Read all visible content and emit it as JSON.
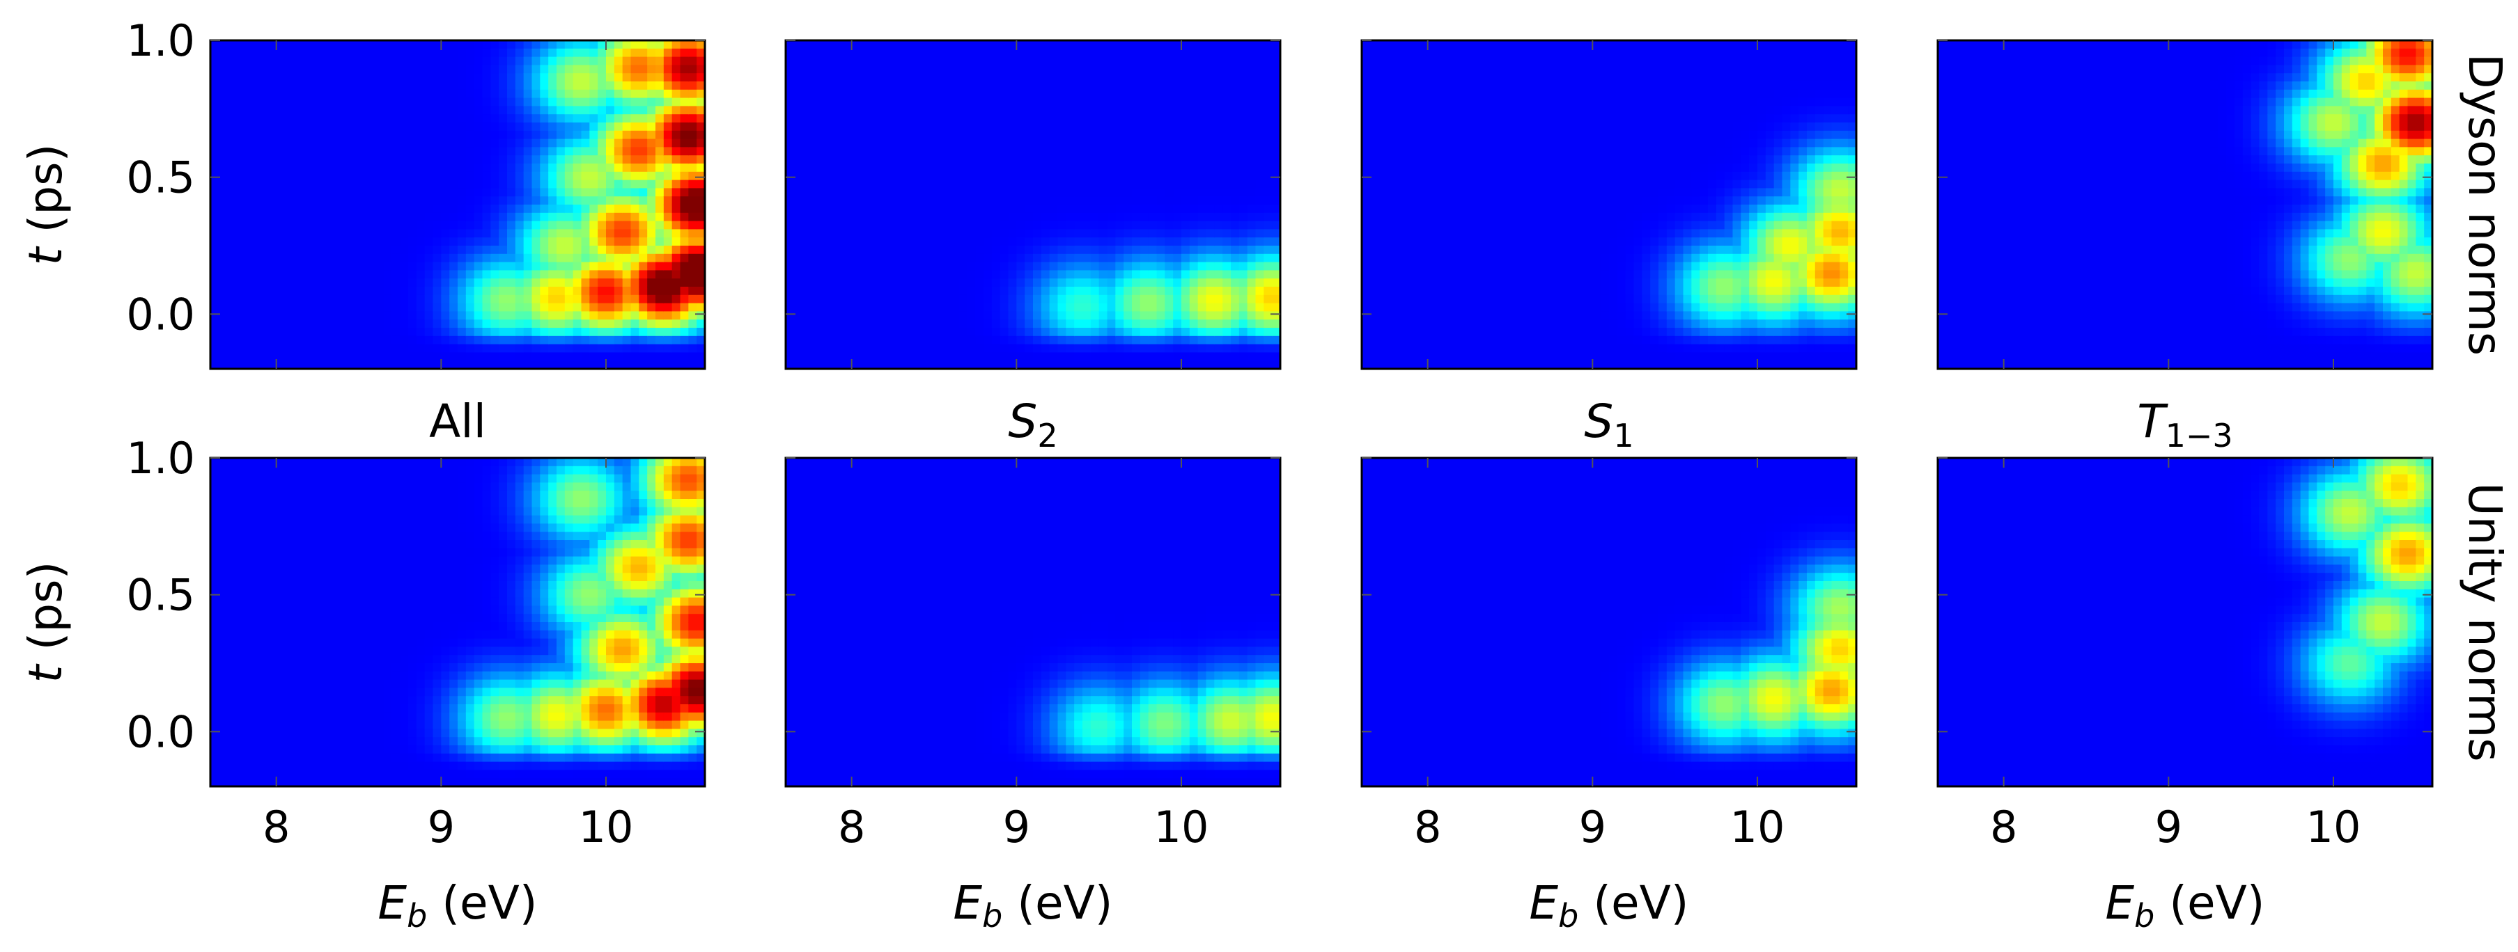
{
  "chart_data": {
    "type": "heatmap",
    "layout": {
      "rows": 2,
      "cols": 4
    },
    "colormap": "jet",
    "colormap_stops": [
      "#00007f",
      "#0000ff",
      "#00ffff",
      "#00ff00",
      "#ffff00",
      "#ff0000"
    ],
    "background_level": 0.12,
    "xlabel": {
      "main": "E",
      "sub": "b",
      "unit": " (eV)"
    },
    "ylabel": {
      "main": "t",
      "unit": " (ps)"
    },
    "xlim": [
      7.6,
      10.6
    ],
    "ylim": [
      -0.2,
      1.0
    ],
    "xticks": [
      8,
      9,
      10
    ],
    "xtick_labels": [
      "8",
      "9",
      "10"
    ],
    "yticks": [
      0.0,
      0.5,
      1.0
    ],
    "ytick_labels": [
      "0.0",
      "0.5",
      "1.0"
    ],
    "column_titles": [
      {
        "main": "All",
        "sub": ""
      },
      {
        "main": "S",
        "sub": "2"
      },
      {
        "main": "S",
        "sub": "1"
      },
      {
        "main": "T",
        "sub": "1−3"
      }
    ],
    "row_labels": [
      "Dyson norms",
      "Unity norms"
    ],
    "panels": [
      {
        "row": 0,
        "col": 0,
        "max": 1.0,
        "points": [
          [
            9.4,
            0.05,
            0.4
          ],
          [
            9.7,
            0.06,
            0.55
          ],
          [
            10.0,
            0.08,
            0.75
          ],
          [
            10.35,
            0.1,
            0.95
          ],
          [
            10.55,
            0.15,
            1.0
          ],
          [
            10.55,
            0.4,
            0.95
          ],
          [
            10.5,
            0.65,
            0.9
          ],
          [
            10.5,
            0.9,
            0.85
          ],
          [
            10.1,
            0.3,
            0.7
          ],
          [
            10.2,
            0.6,
            0.7
          ],
          [
            10.2,
            0.9,
            0.65
          ],
          [
            9.9,
            0.5,
            0.45
          ],
          [
            9.85,
            0.85,
            0.45
          ],
          [
            9.75,
            0.25,
            0.45
          ]
        ]
      },
      {
        "row": 0,
        "col": 1,
        "max": 0.55,
        "points": [
          [
            9.4,
            0.03,
            0.3
          ],
          [
            9.8,
            0.04,
            0.4
          ],
          [
            10.2,
            0.05,
            0.5
          ],
          [
            10.55,
            0.06,
            0.55
          ]
        ]
      },
      {
        "row": 0,
        "col": 2,
        "max": 0.62,
        "points": [
          [
            9.8,
            0.1,
            0.4
          ],
          [
            10.1,
            0.12,
            0.5
          ],
          [
            10.45,
            0.15,
            0.62
          ],
          [
            10.5,
            0.3,
            0.58
          ],
          [
            10.5,
            0.45,
            0.45
          ],
          [
            10.2,
            0.25,
            0.5
          ]
        ]
      },
      {
        "row": 0,
        "col": 3,
        "max": 0.9,
        "points": [
          [
            10.1,
            0.2,
            0.4
          ],
          [
            10.3,
            0.3,
            0.5
          ],
          [
            10.5,
            0.15,
            0.45
          ],
          [
            10.3,
            0.55,
            0.6
          ],
          [
            10.5,
            0.7,
            0.85
          ],
          [
            10.45,
            0.95,
            0.75
          ],
          [
            10.2,
            0.85,
            0.55
          ],
          [
            10.0,
            0.7,
            0.45
          ]
        ]
      },
      {
        "row": 1,
        "col": 0,
        "max": 0.9,
        "points": [
          [
            9.4,
            0.05,
            0.4
          ],
          [
            9.7,
            0.06,
            0.5
          ],
          [
            10.0,
            0.08,
            0.65
          ],
          [
            10.35,
            0.1,
            0.82
          ],
          [
            10.55,
            0.15,
            0.9
          ],
          [
            10.55,
            0.4,
            0.75
          ],
          [
            10.5,
            0.7,
            0.7
          ],
          [
            10.5,
            0.92,
            0.68
          ],
          [
            10.1,
            0.3,
            0.6
          ],
          [
            10.2,
            0.6,
            0.58
          ],
          [
            9.9,
            0.5,
            0.4
          ],
          [
            9.85,
            0.85,
            0.4
          ]
        ]
      },
      {
        "row": 1,
        "col": 1,
        "max": 0.5,
        "points": [
          [
            9.5,
            0.02,
            0.3
          ],
          [
            9.9,
            0.03,
            0.38
          ],
          [
            10.3,
            0.04,
            0.46
          ],
          [
            10.55,
            0.05,
            0.5
          ]
        ]
      },
      {
        "row": 1,
        "col": 2,
        "max": 0.6,
        "points": [
          [
            9.8,
            0.1,
            0.4
          ],
          [
            10.1,
            0.12,
            0.5
          ],
          [
            10.45,
            0.15,
            0.6
          ],
          [
            10.5,
            0.3,
            0.55
          ],
          [
            10.5,
            0.45,
            0.42
          ]
        ]
      },
      {
        "row": 1,
        "col": 3,
        "max": 0.65,
        "points": [
          [
            10.1,
            0.25,
            0.35
          ],
          [
            10.3,
            0.4,
            0.45
          ],
          [
            10.45,
            0.65,
            0.6
          ],
          [
            10.4,
            0.9,
            0.55
          ],
          [
            10.1,
            0.8,
            0.45
          ]
        ]
      }
    ]
  }
}
